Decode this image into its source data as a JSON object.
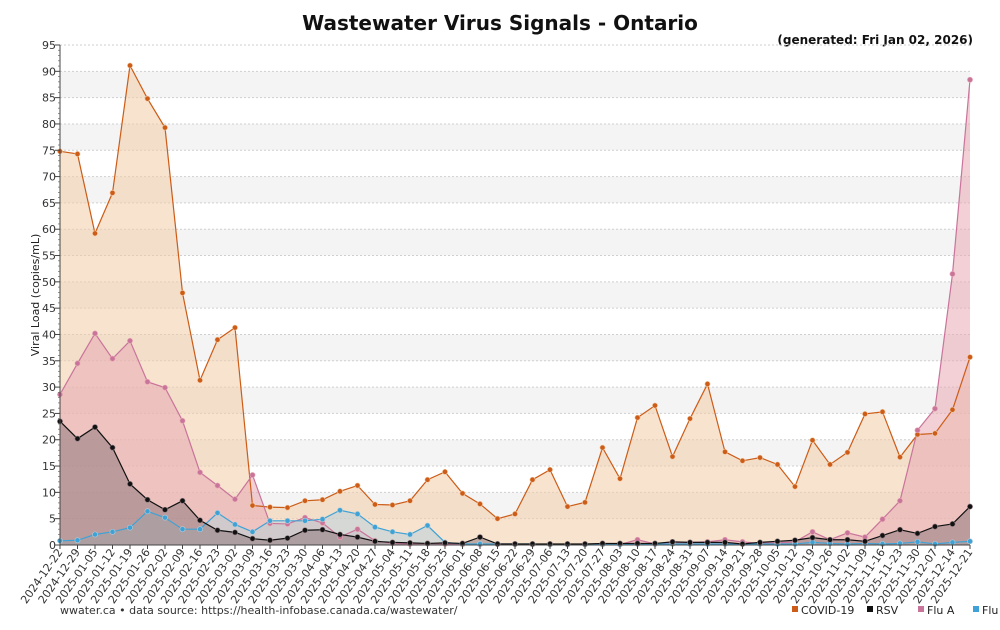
{
  "chart_data": {
    "type": "area",
    "title": "Wastewater Virus Signals - Ontario",
    "subtitle": "(generated: Fri Jan 02, 2026)",
    "ylabel": "Viral Load (copies/mL)",
    "xlabel": "",
    "ylim": [
      0,
      95
    ],
    "y_ticks": [
      0,
      5,
      10,
      15,
      20,
      25,
      30,
      35,
      40,
      45,
      50,
      55,
      60,
      65,
      70,
      75,
      80,
      85,
      90,
      95
    ],
    "grid": true,
    "legend_position": "bottom-right",
    "footer": "wwater.ca • data source: https://health-infobase.canada.ca/wastewater/",
    "x": [
      "2024-12-22",
      "2024-12-29",
      "2025-01-05",
      "2025-01-12",
      "2025-01-19",
      "2025-01-26",
      "2025-02-02",
      "2025-02-09",
      "2025-02-16",
      "2025-02-23",
      "2025-03-02",
      "2025-03-09",
      "2025-03-16",
      "2025-03-23",
      "2025-03-30",
      "2025-04-06",
      "2025-04-13",
      "2025-04-20",
      "2025-04-27",
      "2025-05-04",
      "2025-05-11",
      "2025-05-18",
      "2025-05-25",
      "2025-06-01",
      "2025-06-08",
      "2025-06-15",
      "2025-06-22",
      "2025-06-29",
      "2025-07-06",
      "2025-07-13",
      "2025-07-20",
      "2025-07-27",
      "2025-08-03",
      "2025-08-10",
      "2025-08-17",
      "2025-08-24",
      "2025-08-31",
      "2025-09-07",
      "2025-09-14",
      "2025-09-21",
      "2025-09-28",
      "2025-10-05",
      "2025-10-12",
      "2025-10-19",
      "2025-10-26",
      "2025-11-02",
      "2025-11-09",
      "2025-11-16",
      "2025-11-23",
      "2025-11-30",
      "2025-12-07",
      "2025-12-14",
      "2025-12-21"
    ],
    "series": [
      {
        "name": "COVID-19",
        "color": "#cc5c17",
        "fill": "#f2cca8",
        "values": [
          74.8,
          74.3,
          59.2,
          66.9,
          91.1,
          84.8,
          79.3,
          47.9,
          31.3,
          39.0,
          41.3,
          7.5,
          7.2,
          7.1,
          8.4,
          8.6,
          10.2,
          11.3,
          7.7,
          7.6,
          8.4,
          12.4,
          13.9,
          9.8,
          7.8,
          5.0,
          5.9,
          12.4,
          14.3,
          7.3,
          8.1,
          18.5,
          12.6,
          24.2,
          26.5,
          16.8,
          24.0,
          30.6,
          17.7,
          16.0,
          16.6,
          15.3,
          11.1,
          19.9,
          15.3,
          17.6,
          24.9,
          25.3,
          16.7,
          21.0,
          21.2,
          25.7,
          35.7
        ]
      },
      {
        "name": "Flu A",
        "color": "#c9749b",
        "fill": "#e8aab3",
        "values": [
          28.6,
          34.5,
          40.2,
          35.4,
          38.8,
          31.0,
          29.9,
          23.6,
          13.8,
          11.3,
          8.7,
          13.3,
          4.1,
          4.0,
          5.2,
          4.2,
          1.5,
          3.0,
          0.8,
          0.3,
          0.2,
          0.3,
          0.2,
          0.1,
          0.1,
          0.2,
          0.2,
          0.1,
          0.1,
          0.1,
          0.1,
          0.1,
          0.1,
          1.0,
          0.2,
          0.5,
          0.5,
          0.6,
          1.0,
          0.6,
          0.3,
          0.4,
          0.6,
          2.5,
          1.0,
          2.3,
          1.5,
          4.9,
          8.4,
          21.8,
          25.9,
          51.5,
          88.4
        ]
      },
      {
        "name": "Flu B",
        "color": "#3fa2d6",
        "fill": "#b8cfd9",
        "values": [
          0.8,
          0.9,
          2.0,
          2.5,
          3.3,
          6.4,
          5.2,
          3.0,
          3.0,
          6.1,
          3.9,
          2.5,
          4.6,
          4.6,
          4.6,
          4.9,
          6.6,
          5.9,
          3.4,
          2.5,
          2.0,
          3.7,
          0.5,
          0.2,
          0.2,
          0.2,
          0.2,
          0.2,
          0.1,
          0.1,
          0.1,
          0.1,
          0.1,
          0.2,
          0.2,
          0.2,
          0.2,
          0.2,
          0.2,
          0.2,
          0.2,
          0.2,
          0.2,
          0.5,
          0.3,
          0.2,
          0.3,
          0.2,
          0.3,
          0.6,
          0.2,
          0.5,
          0.7
        ]
      },
      {
        "name": "RSV",
        "color": "#111111",
        "fill": "#8f7a80",
        "values": [
          23.5,
          20.2,
          22.4,
          18.5,
          11.6,
          8.6,
          6.7,
          8.4,
          4.7,
          2.8,
          2.4,
          1.2,
          0.9,
          1.3,
          2.8,
          2.9,
          2.0,
          1.5,
          0.7,
          0.5,
          0.4,
          0.3,
          0.4,
          0.3,
          1.5,
          0.2,
          0.2,
          0.2,
          0.2,
          0.2,
          0.2,
          0.3,
          0.3,
          0.3,
          0.3,
          0.6,
          0.5,
          0.5,
          0.5,
          0.2,
          0.5,
          0.7,
          0.9,
          1.4,
          1.0,
          1.0,
          0.7,
          1.8,
          2.9,
          2.2,
          3.5,
          4.0,
          7.3
        ]
      }
    ]
  },
  "legend": [
    {
      "label": "COVID-19",
      "color": "#cc5c17"
    },
    {
      "label": "RSV",
      "color": "#111111"
    },
    {
      "label": "Flu A",
      "color": "#c9749b"
    },
    {
      "label": "Flu B",
      "color": "#3fa2d6"
    }
  ]
}
